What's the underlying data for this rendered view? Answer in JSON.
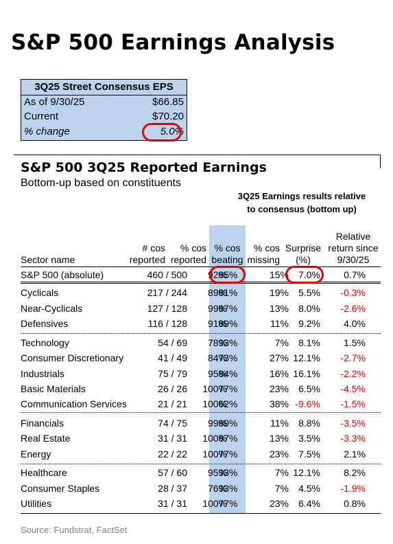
{
  "title": "S&P 500 Earnings Analysis",
  "eps_box": {
    "header": "3Q25 Street Consensus EPS",
    "rows": [
      {
        "label": "As of 9/30/25",
        "value": "$66.85"
      },
      {
        "label": "Current",
        "value": "$70.20"
      },
      {
        "label": "% change",
        "value": "5.0%"
      }
    ]
  },
  "table": {
    "title": "S&P 500 3Q25 Reported Earnings",
    "subtitle": "Bottom-up based on constituents",
    "group_header_line1": "3Q25 Earnings results relative",
    "group_header_line2": "to consensus (bottom up)",
    "columns": {
      "sector": "Sector name",
      "reported_l1": "# cos",
      "reported_l2": "reported",
      "pct_reported_l1": "% cos",
      "pct_reported_l2": "reported",
      "beating_l1": "% cos",
      "beating_l2": "beating",
      "missing_l1": "% cos",
      "missing_l2": "missing",
      "surprise_l1": "Surprise",
      "surprise_l2": "(%)",
      "relative_l1": "Relative",
      "relative_l2": "return since",
      "relative_l3": "9/30/25"
    },
    "rows": [
      {
        "name": "S&P 500 (absolute)",
        "reported": "460 / 500",
        "pct_reported": "92%",
        "beating": "85%",
        "missing": "15%",
        "surprise": "7.0%",
        "relative": "0.7%"
      },
      {
        "name": "Cyclicals",
        "reported": "217 / 244",
        "pct_reported": "89%",
        "beating": "81%",
        "missing": "19%",
        "surprise": "5.5%",
        "relative": "-0.3%"
      },
      {
        "name": "Near-Cyclicals",
        "reported": "127 / 128",
        "pct_reported": "99%",
        "beating": "87%",
        "missing": "13%",
        "surprise": "8.0%",
        "relative": "-2.6%"
      },
      {
        "name": "Defensives",
        "reported": "116 / 128",
        "pct_reported": "91%",
        "beating": "89%",
        "missing": "11%",
        "surprise": "9.2%",
        "relative": "4.0%"
      },
      {
        "name": "Technology",
        "reported": "54 / 69",
        "pct_reported": "78%",
        "beating": "93%",
        "missing": "7%",
        "surprise": "8.1%",
        "relative": "1.5%"
      },
      {
        "name": "Consumer Discretionary",
        "reported": "41 / 49",
        "pct_reported": "84%",
        "beating": "73%",
        "missing": "27%",
        "surprise": "12.1%",
        "relative": "-2.7%"
      },
      {
        "name": "Industrials",
        "reported": "75 / 79",
        "pct_reported": "95%",
        "beating": "84%",
        "missing": "16%",
        "surprise": "16.1%",
        "relative": "-2.2%"
      },
      {
        "name": "Basic Materials",
        "reported": "26 / 26",
        "pct_reported": "100%",
        "beating": "77%",
        "missing": "23%",
        "surprise": "6.5%",
        "relative": "-4.5%"
      },
      {
        "name": "Communication Services",
        "reported": "21 / 21",
        "pct_reported": "100%",
        "beating": "62%",
        "missing": "38%",
        "surprise": "-9.6%",
        "relative": "-1.5%"
      },
      {
        "name": "Financials",
        "reported": "74 / 75",
        "pct_reported": "99%",
        "beating": "89%",
        "missing": "11%",
        "surprise": "8.8%",
        "relative": "-3.5%"
      },
      {
        "name": "Real Estate",
        "reported": "31 / 31",
        "pct_reported": "100%",
        "beating": "87%",
        "missing": "13%",
        "surprise": "3.5%",
        "relative": "-3.3%"
      },
      {
        "name": "Energy",
        "reported": "22 / 22",
        "pct_reported": "100%",
        "beating": "77%",
        "missing": "23%",
        "surprise": "7.5%",
        "relative": "2.1%"
      },
      {
        "name": "Healthcare",
        "reported": "57 / 60",
        "pct_reported": "95%",
        "beating": "93%",
        "missing": "7%",
        "surprise": "12.1%",
        "relative": "8.2%"
      },
      {
        "name": "Consumer Staples",
        "reported": "28 / 37",
        "pct_reported": "76%",
        "beating": "93%",
        "missing": "7%",
        "surprise": "4.5%",
        "relative": "-1.9%"
      },
      {
        "name": "Utilities",
        "reported": "31 / 31",
        "pct_reported": "100%",
        "beating": "77%",
        "missing": "23%",
        "surprise": "6.4%",
        "relative": "0.8%"
      }
    ]
  },
  "source": "Source: Fundstrat, FactSet",
  "colors": {
    "highlight": "#bcd3ee",
    "negative": "#e00000",
    "circle": "#e00000"
  }
}
